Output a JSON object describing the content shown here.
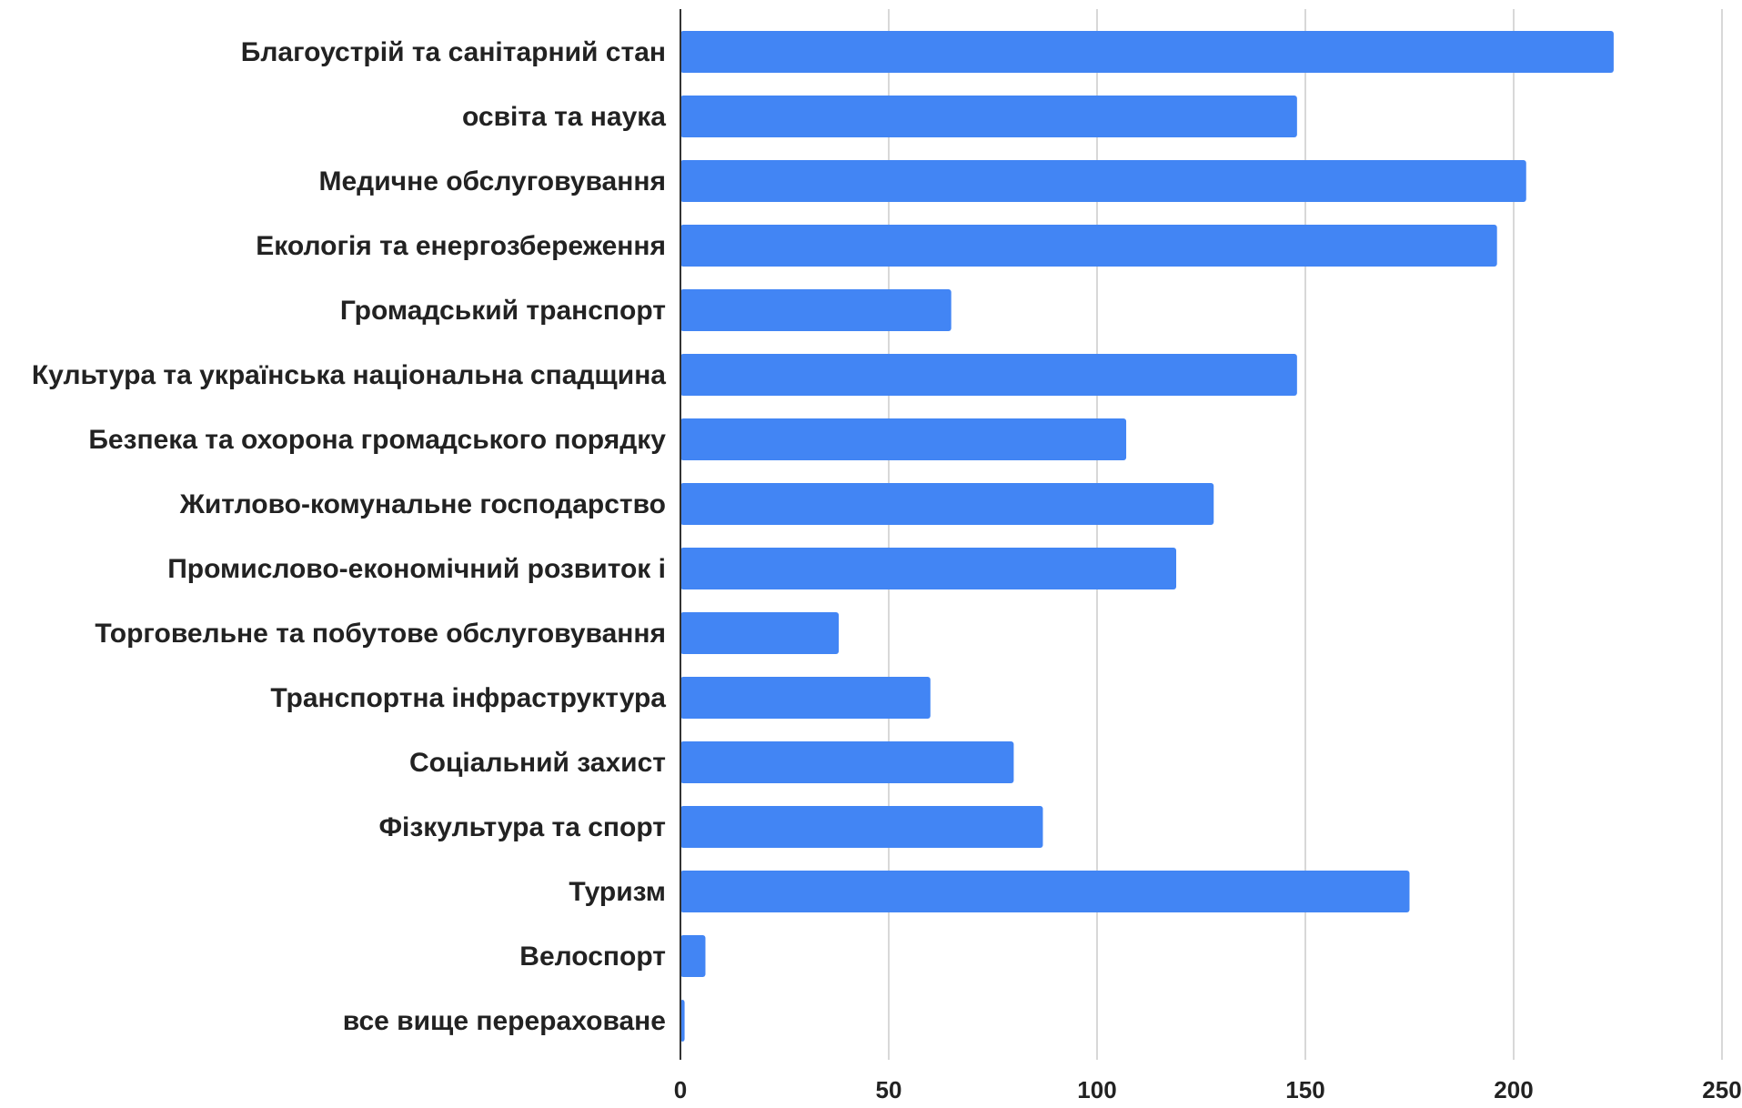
{
  "chart_data": {
    "type": "bar",
    "orientation": "horizontal",
    "title": "",
    "xlabel": "",
    "ylabel": "",
    "xlim": [
      0,
      250
    ],
    "x_ticks": [
      0,
      50,
      100,
      150,
      200,
      250
    ],
    "x_tick_labels": [
      "0",
      "50",
      "100",
      "150",
      "200",
      "250"
    ],
    "grid": true,
    "bar_color": "#4285F4",
    "categories": [
      "Благоустрій та санітарний стан",
      "освіта та наука",
      "Медичне обслуговування",
      "Екологія та енергозбереження",
      "Громадський транспорт",
      "Культура та українська національна спадщина",
      "Безпека та охорона громадського порядку",
      "Житлово-комунальне господарство",
      "Промислово-економічний розвиток і",
      "Торговельне та побутове обслуговування",
      "Транспортна інфраструктура",
      "Соціальний захист",
      "Фізкультура та спорт",
      "Туризм",
      "Велоспорт",
      "все вище перераховане"
    ],
    "values": [
      224,
      148,
      203,
      196,
      65,
      148,
      107,
      128,
      119,
      38,
      60,
      80,
      87,
      175,
      6,
      1
    ]
  }
}
